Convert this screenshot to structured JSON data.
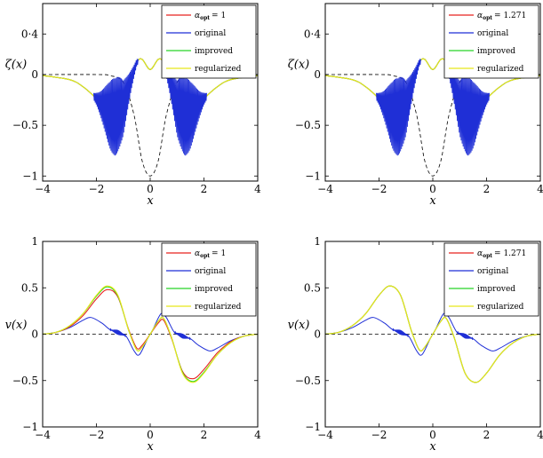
{
  "colors": {
    "alpha_opt": "#e8231f",
    "original": "#1f2fd6",
    "improved": "#27d427",
    "regularized": "#e8e81a",
    "dashed": "#000000"
  },
  "chart_data": [
    {
      "type": "line",
      "panel": "top-left",
      "xlabel": "x",
      "ylabel": "ζ(x)",
      "xlim": [
        -4,
        4
      ],
      "ylim": [
        -1.05,
        0.7
      ],
      "xticks": [
        "−4",
        "−2",
        "0",
        "2",
        "4"
      ],
      "xtick_values": [
        -4,
        -2,
        0,
        2,
        4
      ],
      "yticks": [
        "−1",
        "−0.5",
        "0",
        "0·4"
      ],
      "ytick_values": [
        -1,
        -0.5,
        0,
        0.4
      ],
      "legend": [
        "α_opt = 1",
        "original",
        "improved",
        "regularized"
      ],
      "legend_alpha": "= 1",
      "legend_position": "top-right",
      "series": [
        {
          "name": "α_opt = 1",
          "x": [
            -4,
            -3,
            -2.5,
            -2,
            -1.5,
            -1.3,
            -1,
            -0.7,
            -0.5,
            -0.3,
            0,
            0.3,
            0.5,
            0.7,
            1,
            1.3,
            1.5,
            2,
            2.5,
            3,
            4
          ],
          "y": [
            -0.01,
            -0.05,
            -0.12,
            -0.24,
            -0.4,
            -0.42,
            -0.33,
            -0.05,
            0.12,
            0.15,
            0.05,
            0.15,
            0.12,
            -0.05,
            -0.33,
            -0.42,
            -0.4,
            -0.24,
            -0.12,
            -0.05,
            -0.01
          ]
        },
        {
          "name": "original",
          "x": [
            -4,
            -3,
            -2.5,
            -2,
            -1.5,
            -1.3,
            -1,
            -0.7,
            -0.5,
            -0.3,
            0,
            0.3,
            0.5,
            0.7,
            1,
            1.3,
            1.5,
            2,
            2.5,
            3,
            4
          ],
          "y": [
            -0.01,
            -0.05,
            -0.12,
            -0.24,
            -0.4,
            -0.42,
            -0.33,
            -0.05,
            0.12,
            0.15,
            0.05,
            0.15,
            0.12,
            -0.05,
            -0.33,
            -0.42,
            -0.4,
            -0.24,
            -0.12,
            -0.05,
            -0.01
          ]
        },
        {
          "name": "improved",
          "x": [
            -4,
            -3,
            -2.5,
            -2,
            -1.5,
            -1.3,
            -1,
            -0.7,
            -0.5,
            -0.3,
            0,
            0.3,
            0.5,
            0.7,
            1,
            1.3,
            1.5,
            2,
            2.5,
            3,
            4
          ],
          "y": [
            -0.01,
            -0.05,
            -0.12,
            -0.24,
            -0.4,
            -0.42,
            -0.33,
            -0.05,
            0.12,
            0.15,
            0.05,
            0.15,
            0.12,
            -0.05,
            -0.33,
            -0.42,
            -0.4,
            -0.24,
            -0.12,
            -0.05,
            -0.01
          ]
        },
        {
          "name": "regularized",
          "x": [
            -4,
            -3,
            -2.5,
            -2,
            -1.5,
            -1.3,
            -1,
            -0.7,
            -0.5,
            -0.3,
            0,
            0.3,
            0.5,
            0.7,
            1,
            1.3,
            1.5,
            2,
            2.5,
            3,
            4
          ],
          "y": [
            -0.01,
            -0.05,
            -0.12,
            -0.24,
            -0.4,
            -0.42,
            -0.33,
            -0.05,
            0.12,
            0.15,
            0.05,
            0.15,
            0.12,
            -0.05,
            -0.33,
            -0.42,
            -0.4,
            -0.24,
            -0.12,
            -0.05,
            -0.01
          ]
        }
      ],
      "oscillation_bands": [
        {
          "x_range": [
            -2.1,
            -0.45
          ],
          "peak_x": -1.3,
          "half_amplitude": 0.38,
          "center": "original"
        },
        {
          "x_range": [
            0.45,
            2.1
          ],
          "peak_x": 1.3,
          "half_amplitude": 0.38,
          "center": "original"
        }
      ],
      "dashed_reference": {
        "x": [
          -4,
          -2,
          -1.5,
          -1,
          -0.6,
          -0.3,
          0,
          0.3,
          0.6,
          1,
          1.5,
          2,
          4
        ],
        "y": [
          0,
          0,
          -0.01,
          -0.08,
          -0.4,
          -0.85,
          -1,
          -0.85,
          -0.4,
          -0.08,
          -0.01,
          0,
          0
        ]
      }
    },
    {
      "type": "line",
      "panel": "top-right",
      "xlabel": "x",
      "ylabel": "ζ(x)",
      "xlim": [
        -4,
        4
      ],
      "ylim": [
        -1.05,
        0.7
      ],
      "xticks": [
        "−4",
        "−2",
        "0",
        "2",
        "4"
      ],
      "xtick_values": [
        -4,
        -2,
        0,
        2,
        4
      ],
      "yticks": [
        "−1",
        "−0.5",
        "0",
        "0·4"
      ],
      "ytick_values": [
        -1,
        -0.5,
        0,
        0.4
      ],
      "legend": [
        "α_opt = 1.271",
        "original",
        "improved",
        "regularized"
      ],
      "legend_alpha": "= 1.271",
      "legend_position": "top-right",
      "series": [
        {
          "name": "α_opt = 1.271",
          "x": [
            -4,
            -3,
            -2.5,
            -2,
            -1.5,
            -1.3,
            -1,
            -0.7,
            -0.5,
            -0.3,
            0,
            0.3,
            0.5,
            0.7,
            1,
            1.3,
            1.5,
            2,
            2.5,
            3,
            4
          ],
          "y": [
            -0.01,
            -0.05,
            -0.12,
            -0.24,
            -0.4,
            -0.42,
            -0.33,
            -0.05,
            0.12,
            0.15,
            0.05,
            0.15,
            0.12,
            -0.05,
            -0.33,
            -0.42,
            -0.4,
            -0.24,
            -0.12,
            -0.05,
            -0.01
          ]
        },
        {
          "name": "original",
          "x": [
            -4,
            -3,
            -2.5,
            -2,
            -1.5,
            -1.3,
            -1,
            -0.7,
            -0.5,
            -0.3,
            0,
            0.3,
            0.5,
            0.7,
            1,
            1.3,
            1.5,
            2,
            2.5,
            3,
            4
          ],
          "y": [
            -0.01,
            -0.05,
            -0.12,
            -0.24,
            -0.4,
            -0.42,
            -0.33,
            -0.05,
            0.12,
            0.15,
            0.05,
            0.15,
            0.12,
            -0.05,
            -0.33,
            -0.42,
            -0.4,
            -0.24,
            -0.12,
            -0.05,
            -0.01
          ]
        },
        {
          "name": "improved",
          "x": [
            -4,
            -3,
            -2.5,
            -2,
            -1.5,
            -1.3,
            -1,
            -0.7,
            -0.5,
            -0.3,
            0,
            0.3,
            0.5,
            0.7,
            1,
            1.3,
            1.5,
            2,
            2.5,
            3,
            4
          ],
          "y": [
            -0.01,
            -0.05,
            -0.12,
            -0.24,
            -0.4,
            -0.42,
            -0.33,
            -0.05,
            0.12,
            0.15,
            0.05,
            0.15,
            0.12,
            -0.05,
            -0.33,
            -0.42,
            -0.4,
            -0.24,
            -0.12,
            -0.05,
            -0.01
          ]
        },
        {
          "name": "regularized",
          "x": [
            -4,
            -3,
            -2.5,
            -2,
            -1.5,
            -1.3,
            -1,
            -0.7,
            -0.5,
            -0.3,
            0,
            0.3,
            0.5,
            0.7,
            1,
            1.3,
            1.5,
            2,
            2.5,
            3,
            4
          ],
          "y": [
            -0.01,
            -0.05,
            -0.12,
            -0.24,
            -0.4,
            -0.42,
            -0.33,
            -0.05,
            0.12,
            0.15,
            0.05,
            0.15,
            0.12,
            -0.05,
            -0.33,
            -0.42,
            -0.4,
            -0.24,
            -0.12,
            -0.05,
            -0.01
          ]
        }
      ],
      "oscillation_bands": [
        {
          "x_range": [
            -2.1,
            -0.45
          ],
          "peak_x": -1.3,
          "half_amplitude": 0.38,
          "center": "original"
        },
        {
          "x_range": [
            0.45,
            2.1
          ],
          "peak_x": 1.3,
          "half_amplitude": 0.38,
          "center": "original"
        }
      ],
      "dashed_reference": {
        "x": [
          -4,
          -2,
          -1.5,
          -1,
          -0.6,
          -0.3,
          0,
          0.3,
          0.6,
          1,
          1.5,
          2,
          4
        ],
        "y": [
          0,
          0,
          -0.01,
          -0.08,
          -0.4,
          -0.85,
          -1,
          -0.85,
          -0.4,
          -0.08,
          -0.01,
          0,
          0
        ]
      }
    },
    {
      "type": "line",
      "panel": "bottom-left",
      "xlabel": "x",
      "ylabel": "v(x)",
      "xlim": [
        -4,
        4
      ],
      "ylim": [
        -1,
        1
      ],
      "xticks": [
        "−4",
        "−2",
        "0",
        "2",
        "4"
      ],
      "xtick_values": [
        -4,
        -2,
        0,
        2,
        4
      ],
      "yticks": [
        "−1",
        "−0.5",
        "0",
        "0.5",
        "1"
      ],
      "ytick_values": [
        -1,
        -0.5,
        0,
        0.5,
        1
      ],
      "legend": [
        "α_opt = 1",
        "original",
        "improved",
        "regularized"
      ],
      "legend_alpha": "= 1",
      "legend_position": "top-right",
      "series": [
        {
          "name": "α_opt = 1",
          "x": [
            -4,
            -3.5,
            -3,
            -2.5,
            -2,
            -1.6,
            -1.2,
            -0.8,
            -0.5,
            -0.3,
            0,
            0.3,
            0.5,
            0.8,
            1.2,
            1.6,
            2,
            2.5,
            3,
            3.5,
            4
          ],
          "y": [
            0,
            0.02,
            0.08,
            0.2,
            0.38,
            0.48,
            0.4,
            0.05,
            -0.15,
            -0.12,
            0,
            0.12,
            0.15,
            -0.05,
            -0.4,
            -0.48,
            -0.38,
            -0.2,
            -0.08,
            -0.02,
            0
          ]
        },
        {
          "name": "original",
          "x": [
            -4,
            -3.5,
            -3,
            -2.5,
            -2.2,
            -1.8,
            -1.5,
            -1.2,
            -0.9,
            -0.6,
            -0.4,
            -0.1,
            0,
            0.1,
            0.4,
            0.6,
            0.9,
            1.2,
            1.5,
            1.8,
            2.2,
            2.5,
            3,
            3.5,
            4
          ],
          "y": [
            0,
            0.02,
            0.07,
            0.15,
            0.18,
            0.12,
            0.05,
            0.02,
            -0.02,
            -0.18,
            -0.22,
            -0.05,
            0,
            0.05,
            0.22,
            0.18,
            0.02,
            -0.02,
            -0.05,
            -0.12,
            -0.18,
            -0.15,
            -0.07,
            -0.02,
            0
          ]
        },
        {
          "name": "improved",
          "x": [
            -4,
            -3.5,
            -3,
            -2.5,
            -2,
            -1.6,
            -1.2,
            -0.8,
            -0.5,
            -0.3,
            0,
            0.3,
            0.5,
            0.8,
            1.2,
            1.6,
            2,
            2.5,
            3,
            3.5,
            4
          ],
          "y": [
            0,
            0.02,
            0.09,
            0.22,
            0.41,
            0.51,
            0.41,
            0.04,
            -0.17,
            -0.14,
            0,
            0.14,
            0.17,
            -0.04,
            -0.41,
            -0.51,
            -0.41,
            -0.22,
            -0.09,
            -0.02,
            0
          ]
        },
        {
          "name": "regularized",
          "x": [
            -4,
            -3.5,
            -3,
            -2.5,
            -2,
            -1.6,
            -1.2,
            -0.8,
            -0.5,
            -0.3,
            0,
            0.3,
            0.5,
            0.8,
            1.2,
            1.6,
            2,
            2.5,
            3,
            3.5,
            4
          ],
          "y": [
            0,
            0.02,
            0.09,
            0.22,
            0.42,
            0.52,
            0.42,
            0.04,
            -0.17,
            -0.14,
            0,
            0.14,
            0.17,
            -0.04,
            -0.42,
            -0.52,
            -0.42,
            -0.22,
            -0.09,
            -0.02,
            0
          ]
        }
      ],
      "oscillation_bands": [
        {
          "x_range": [
            -1.5,
            -0.9
          ],
          "peak_x": -1.2,
          "half_amplitude": 0.025,
          "center": "original"
        },
        {
          "x_range": [
            0.9,
            1.5
          ],
          "peak_x": 1.2,
          "half_amplitude": 0.025,
          "center": "original"
        }
      ],
      "dashed_reference": {
        "x": [
          -4,
          4
        ],
        "y": [
          0,
          0
        ]
      }
    },
    {
      "type": "line",
      "panel": "bottom-right",
      "xlabel": "x",
      "ylabel": "v(x)",
      "xlim": [
        -4,
        4
      ],
      "ylim": [
        -1,
        1
      ],
      "xticks": [
        "−4",
        "−2",
        "0",
        "2",
        "4"
      ],
      "xtick_values": [
        -4,
        -2,
        0,
        2,
        4
      ],
      "yticks": [
        "−1",
        "−0.5",
        "0",
        "0.5",
        "1"
      ],
      "ytick_values": [
        -1,
        -0.5,
        0,
        0.5,
        1
      ],
      "legend": [
        "α_opt = 1.271",
        "original",
        "improved",
        "regularized"
      ],
      "legend_alpha": "= 1.271",
      "legend_position": "top-right",
      "series": [
        {
          "name": "α_opt = 1.271",
          "x": [
            -4,
            -3.5,
            -3,
            -2.5,
            -2,
            -1.6,
            -1.2,
            -0.8,
            -0.5,
            -0.3,
            0,
            0.3,
            0.5,
            0.8,
            1.2,
            1.6,
            2,
            2.5,
            3,
            3.5,
            4
          ],
          "y": [
            0,
            0.02,
            0.09,
            0.22,
            0.42,
            0.52,
            0.42,
            0.04,
            -0.17,
            -0.14,
            0,
            0.14,
            0.17,
            -0.04,
            -0.42,
            -0.52,
            -0.42,
            -0.22,
            -0.09,
            -0.02,
            0
          ]
        },
        {
          "name": "original",
          "x": [
            -4,
            -3.5,
            -3,
            -2.5,
            -2.2,
            -1.8,
            -1.5,
            -1.2,
            -0.9,
            -0.6,
            -0.4,
            -0.1,
            0,
            0.1,
            0.4,
            0.6,
            0.9,
            1.2,
            1.5,
            1.8,
            2.2,
            2.5,
            3,
            3.5,
            4
          ],
          "y": [
            0,
            0.02,
            0.07,
            0.15,
            0.18,
            0.12,
            0.05,
            0.02,
            -0.02,
            -0.18,
            -0.22,
            -0.05,
            0,
            0.05,
            0.22,
            0.18,
            0.02,
            -0.02,
            -0.05,
            -0.12,
            -0.18,
            -0.15,
            -0.07,
            -0.02,
            0
          ]
        },
        {
          "name": "improved",
          "x": [
            -4,
            -3.5,
            -3,
            -2.5,
            -2,
            -1.6,
            -1.2,
            -0.8,
            -0.5,
            -0.3,
            0,
            0.3,
            0.5,
            0.8,
            1.2,
            1.6,
            2,
            2.5,
            3,
            3.5,
            4
          ],
          "y": [
            0,
            0.02,
            0.09,
            0.22,
            0.42,
            0.52,
            0.42,
            0.04,
            -0.17,
            -0.14,
            0,
            0.14,
            0.17,
            -0.04,
            -0.42,
            -0.52,
            -0.42,
            -0.22,
            -0.09,
            -0.02,
            0
          ]
        },
        {
          "name": "regularized",
          "x": [
            -4,
            -3.5,
            -3,
            -2.5,
            -2,
            -1.6,
            -1.2,
            -0.8,
            -0.5,
            -0.3,
            0,
            0.3,
            0.5,
            0.8,
            1.2,
            1.6,
            2,
            2.5,
            3,
            3.5,
            4
          ],
          "y": [
            0,
            0.02,
            0.09,
            0.22,
            0.42,
            0.52,
            0.42,
            0.04,
            -0.17,
            -0.14,
            0,
            0.14,
            0.17,
            -0.04,
            -0.42,
            -0.52,
            -0.42,
            -0.22,
            -0.09,
            -0.02,
            0
          ]
        }
      ],
      "oscillation_bands": [
        {
          "x_range": [
            -1.5,
            -0.9
          ],
          "peak_x": -1.2,
          "half_amplitude": 0.025,
          "center": "original"
        },
        {
          "x_range": [
            0.9,
            1.5
          ],
          "peak_x": 1.2,
          "half_amplitude": 0.025,
          "center": "original"
        }
      ],
      "dashed_reference": {
        "x": [
          -4,
          4
        ],
        "y": [
          0,
          0
        ]
      }
    }
  ]
}
